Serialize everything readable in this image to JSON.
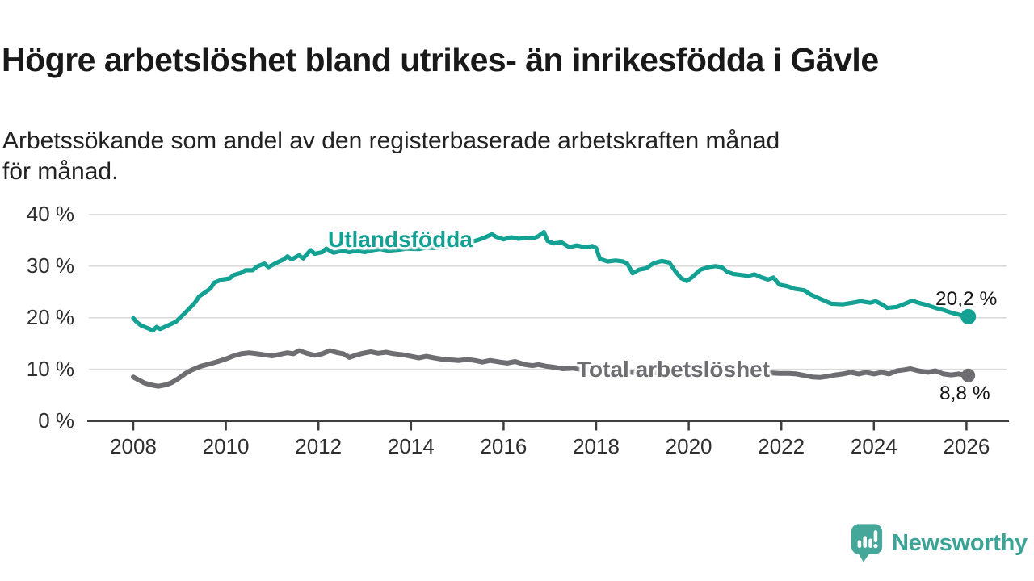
{
  "title": "Högre arbetslöshet bland utrikes- än inrikesfödda i Gävle",
  "subtitle": "Arbetssökande som andel av den registerbaserade arbetskraften månad för månad.",
  "branding": {
    "name": "Newsworthy",
    "logo_icon": "newsworthy-speech-bubble-bar-chart-icon",
    "logo_color": "#45a79a",
    "text_color": "#3ba496"
  },
  "colors": {
    "series_foreign_born": "#12a192",
    "series_total": "#6e6e72",
    "grid_line": "#d9d9d9",
    "axis_line": "#3f3f3f",
    "title_text": "#191919",
    "tick_text": "#2f2f2f"
  },
  "chart_data": {
    "type": "line",
    "title": "Högre arbetslöshet bland utrikes- än inrikesfödda i Gävle",
    "subtitle": "Arbetssökande som andel av den registerbaserade arbetskraften månad för månad.",
    "unit": "%",
    "grid": true,
    "legend": "inline-labels",
    "x_axis": {
      "range": [
        2007.0,
        2026.95
      ],
      "ticks": [
        {
          "value": 2008,
          "label": "2008"
        },
        {
          "value": 2010,
          "label": "2010"
        },
        {
          "value": 2012,
          "label": "2012"
        },
        {
          "value": 2014,
          "label": "2014"
        },
        {
          "value": 2016,
          "label": "2016"
        },
        {
          "value": 2018,
          "label": "2018"
        },
        {
          "value": 2020,
          "label": "2020"
        },
        {
          "value": 2022,
          "label": "2022"
        },
        {
          "value": 2024,
          "label": "2024"
        },
        {
          "value": 2026,
          "label": "2026"
        }
      ]
    },
    "y_axis": {
      "range": [
        0,
        40
      ],
      "ticks": [
        {
          "value": 40,
          "label": "40 %"
        },
        {
          "value": 30,
          "label": "30 %"
        },
        {
          "value": 20,
          "label": "20 %"
        },
        {
          "value": 10,
          "label": "10 %"
        },
        {
          "value": 0,
          "label": "0 %"
        }
      ]
    },
    "series": [
      {
        "name": "Utlandsfödda",
        "color": "#12a192",
        "stroke_width": 5.2,
        "end_dot_radius": 9.5,
        "end_value": 20.2,
        "end_label": "20,2 %",
        "points": [
          [
            2008.0,
            19.9
          ],
          [
            2008.08,
            19.1
          ],
          [
            2008.17,
            18.5
          ],
          [
            2008.33,
            17.9
          ],
          [
            2008.42,
            17.5
          ],
          [
            2008.5,
            18.2
          ],
          [
            2008.58,
            17.8
          ],
          [
            2008.75,
            18.5
          ],
          [
            2008.92,
            19.2
          ],
          [
            2009.0,
            19.9
          ],
          [
            2009.17,
            21.4
          ],
          [
            2009.33,
            22.9
          ],
          [
            2009.42,
            24.1
          ],
          [
            2009.58,
            25.1
          ],
          [
            2009.67,
            25.7
          ],
          [
            2009.75,
            26.8
          ],
          [
            2009.92,
            27.4
          ],
          [
            2010.08,
            27.6
          ],
          [
            2010.17,
            28.3
          ],
          [
            2010.33,
            28.7
          ],
          [
            2010.42,
            29.2
          ],
          [
            2010.58,
            29.2
          ],
          [
            2010.67,
            29.9
          ],
          [
            2010.83,
            30.5
          ],
          [
            2010.92,
            29.8
          ],
          [
            2011.08,
            30.6
          ],
          [
            2011.25,
            31.3
          ],
          [
            2011.33,
            31.9
          ],
          [
            2011.42,
            31.3
          ],
          [
            2011.58,
            32.1
          ],
          [
            2011.67,
            31.5
          ],
          [
            2011.83,
            33.1
          ],
          [
            2011.92,
            32.4
          ],
          [
            2012.08,
            32.7
          ],
          [
            2012.17,
            33.4
          ],
          [
            2012.33,
            32.6
          ],
          [
            2012.5,
            33.0
          ],
          [
            2012.67,
            32.7
          ],
          [
            2012.83,
            33.0
          ],
          [
            2013.0,
            32.7
          ],
          [
            2013.17,
            33.1
          ],
          [
            2013.33,
            33.3
          ],
          [
            2013.5,
            33.0
          ],
          [
            2013.75,
            33.2
          ],
          [
            2013.92,
            33.4
          ],
          [
            2014.17,
            33.3
          ],
          [
            2014.33,
            33.6
          ],
          [
            2014.5,
            33.5
          ],
          [
            2014.75,
            33.8
          ],
          [
            2014.92,
            34.1
          ],
          [
            2015.08,
            34.3
          ],
          [
            2015.25,
            34.6
          ],
          [
            2015.42,
            35.0
          ],
          [
            2015.58,
            35.5
          ],
          [
            2015.75,
            36.2
          ],
          [
            2015.83,
            35.7
          ],
          [
            2016.0,
            35.2
          ],
          [
            2016.17,
            35.6
          ],
          [
            2016.33,
            35.3
          ],
          [
            2016.5,
            35.5
          ],
          [
            2016.67,
            35.5
          ],
          [
            2016.75,
            35.8
          ],
          [
            2016.87,
            36.6
          ],
          [
            2016.95,
            34.9
          ],
          [
            2017.08,
            34.4
          ],
          [
            2017.25,
            34.6
          ],
          [
            2017.42,
            33.7
          ],
          [
            2017.58,
            34.0
          ],
          [
            2017.75,
            33.7
          ],
          [
            2017.92,
            33.9
          ],
          [
            2018.0,
            33.5
          ],
          [
            2018.08,
            31.4
          ],
          [
            2018.25,
            30.9
          ],
          [
            2018.42,
            31.1
          ],
          [
            2018.58,
            30.9
          ],
          [
            2018.67,
            30.5
          ],
          [
            2018.79,
            28.6
          ],
          [
            2018.92,
            29.3
          ],
          [
            2019.08,
            29.6
          ],
          [
            2019.25,
            30.6
          ],
          [
            2019.42,
            31.0
          ],
          [
            2019.58,
            30.7
          ],
          [
            2019.71,
            29.0
          ],
          [
            2019.83,
            27.7
          ],
          [
            2019.96,
            27.1
          ],
          [
            2020.08,
            27.9
          ],
          [
            2020.25,
            29.3
          ],
          [
            2020.42,
            29.8
          ],
          [
            2020.58,
            30.0
          ],
          [
            2020.71,
            29.8
          ],
          [
            2020.83,
            28.9
          ],
          [
            2020.96,
            28.5
          ],
          [
            2021.13,
            28.3
          ],
          [
            2021.29,
            28.1
          ],
          [
            2021.42,
            28.4
          ],
          [
            2021.58,
            27.8
          ],
          [
            2021.71,
            27.4
          ],
          [
            2021.83,
            27.8
          ],
          [
            2021.96,
            26.4
          ],
          [
            2022.13,
            26.1
          ],
          [
            2022.29,
            25.6
          ],
          [
            2022.5,
            25.3
          ],
          [
            2022.63,
            24.5
          ],
          [
            2022.83,
            23.7
          ],
          [
            2023.08,
            22.7
          ],
          [
            2023.33,
            22.6
          ],
          [
            2023.54,
            22.9
          ],
          [
            2023.71,
            23.2
          ],
          [
            2023.92,
            22.9
          ],
          [
            2024.04,
            23.2
          ],
          [
            2024.17,
            22.6
          ],
          [
            2024.29,
            21.9
          ],
          [
            2024.5,
            22.1
          ],
          [
            2024.67,
            22.7
          ],
          [
            2024.83,
            23.3
          ],
          [
            2024.96,
            22.9
          ],
          [
            2025.17,
            22.4
          ],
          [
            2025.33,
            21.9
          ],
          [
            2025.5,
            21.5
          ],
          [
            2025.63,
            21.1
          ],
          [
            2025.79,
            20.7
          ],
          [
            2025.92,
            20.4
          ],
          [
            2026.04,
            20.2
          ]
        ]
      },
      {
        "name": "Total arbetslöshet",
        "color": "#6e6e72",
        "stroke_width": 6,
        "end_dot_radius": 8.5,
        "end_value": 8.8,
        "end_label": "8,8 %",
        "points": [
          [
            2008.0,
            8.5
          ],
          [
            2008.08,
            8.1
          ],
          [
            2008.25,
            7.3
          ],
          [
            2008.42,
            6.9
          ],
          [
            2008.54,
            6.7
          ],
          [
            2008.71,
            7.0
          ],
          [
            2008.83,
            7.4
          ],
          [
            2008.96,
            8.1
          ],
          [
            2009.13,
            9.2
          ],
          [
            2009.25,
            9.8
          ],
          [
            2009.46,
            10.6
          ],
          [
            2009.67,
            11.1
          ],
          [
            2009.83,
            11.5
          ],
          [
            2010.0,
            12.0
          ],
          [
            2010.17,
            12.6
          ],
          [
            2010.33,
            13.0
          ],
          [
            2010.5,
            13.2
          ],
          [
            2010.67,
            13.0
          ],
          [
            2010.83,
            12.8
          ],
          [
            2011.0,
            12.6
          ],
          [
            2011.17,
            12.9
          ],
          [
            2011.33,
            13.2
          ],
          [
            2011.46,
            13.0
          ],
          [
            2011.58,
            13.6
          ],
          [
            2011.75,
            13.1
          ],
          [
            2011.92,
            12.7
          ],
          [
            2012.08,
            13.0
          ],
          [
            2012.25,
            13.6
          ],
          [
            2012.42,
            13.2
          ],
          [
            2012.54,
            13.0
          ],
          [
            2012.67,
            12.3
          ],
          [
            2012.83,
            12.8
          ],
          [
            2012.96,
            13.1
          ],
          [
            2013.13,
            13.4
          ],
          [
            2013.29,
            13.1
          ],
          [
            2013.46,
            13.3
          ],
          [
            2013.63,
            13.0
          ],
          [
            2013.83,
            12.8
          ],
          [
            2014.0,
            12.5
          ],
          [
            2014.17,
            12.2
          ],
          [
            2014.33,
            12.5
          ],
          [
            2014.5,
            12.2
          ],
          [
            2014.71,
            11.9
          ],
          [
            2014.88,
            11.8
          ],
          [
            2015.04,
            11.7
          ],
          [
            2015.21,
            11.9
          ],
          [
            2015.38,
            11.7
          ],
          [
            2015.54,
            11.4
          ],
          [
            2015.71,
            11.7
          ],
          [
            2015.92,
            11.4
          ],
          [
            2016.08,
            11.2
          ],
          [
            2016.25,
            11.5
          ],
          [
            2016.46,
            10.9
          ],
          [
            2016.63,
            10.7
          ],
          [
            2016.75,
            10.9
          ],
          [
            2016.92,
            10.6
          ],
          [
            2017.08,
            10.4
          ],
          [
            2017.29,
            10.1
          ],
          [
            2017.5,
            10.2
          ],
          [
            2017.71,
            9.9
          ],
          [
            2017.92,
            9.8
          ],
          [
            2018.13,
            9.6
          ],
          [
            2018.33,
            9.5
          ],
          [
            2018.54,
            9.6
          ],
          [
            2018.75,
            9.4
          ],
          [
            2018.96,
            9.3
          ],
          [
            2019.17,
            9.2
          ],
          [
            2019.38,
            9.4
          ],
          [
            2019.58,
            9.2
          ],
          [
            2019.79,
            9.1
          ],
          [
            2019.96,
            9.0
          ],
          [
            2020.13,
            9.6
          ],
          [
            2020.29,
            10.3
          ],
          [
            2020.5,
            10.6
          ],
          [
            2020.71,
            10.4
          ],
          [
            2020.92,
            10.1
          ],
          [
            2021.13,
            9.9
          ],
          [
            2021.33,
            9.7
          ],
          [
            2021.54,
            9.5
          ],
          [
            2021.75,
            9.3
          ],
          [
            2021.96,
            9.2
          ],
          [
            2022.17,
            9.2
          ],
          [
            2022.33,
            9.1
          ],
          [
            2022.5,
            8.8
          ],
          [
            2022.67,
            8.5
          ],
          [
            2022.83,
            8.4
          ],
          [
            2023.0,
            8.6
          ],
          [
            2023.17,
            8.9
          ],
          [
            2023.33,
            9.1
          ],
          [
            2023.5,
            9.4
          ],
          [
            2023.67,
            9.1
          ],
          [
            2023.83,
            9.4
          ],
          [
            2024.0,
            9.1
          ],
          [
            2024.17,
            9.4
          ],
          [
            2024.33,
            9.1
          ],
          [
            2024.5,
            9.7
          ],
          [
            2024.67,
            9.9
          ],
          [
            2024.79,
            10.1
          ],
          [
            2024.96,
            9.7
          ],
          [
            2025.17,
            9.4
          ],
          [
            2025.33,
            9.7
          ],
          [
            2025.5,
            9.1
          ],
          [
            2025.67,
            8.9
          ],
          [
            2025.83,
            9.1
          ],
          [
            2026.04,
            8.8
          ]
        ]
      }
    ]
  }
}
